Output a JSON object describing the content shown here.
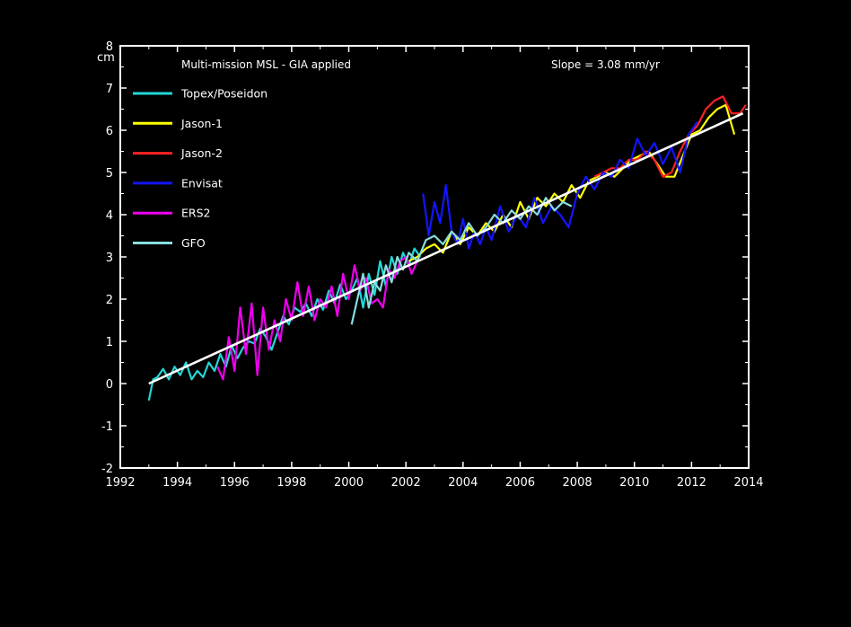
{
  "chart_data": {
    "type": "line",
    "title": "Multi-mission   MSL - GIA applied",
    "annotation": "Slope = 3.08 mm/yr",
    "ylabel": "cm",
    "xlabel": "",
    "xlim": [
      1992,
      2014
    ],
    "ylim": [
      -2,
      8
    ],
    "xticks": [
      "1992",
      "1994",
      "1996",
      "1998",
      "2000",
      "2002",
      "2004",
      "2006",
      "2008",
      "2010",
      "2012",
      "2014"
    ],
    "yticks": [
      "-2",
      "-1",
      "0",
      "1",
      "2",
      "3",
      "4",
      "5",
      "6",
      "7",
      "8"
    ],
    "legend_position": "top-left",
    "grid": false,
    "series": [
      {
        "name": "Topex/Poseidon",
        "color": "#22d8d8",
        "x": [
          1993.0,
          1993.15,
          1993.3,
          1993.5,
          1993.7,
          1993.9,
          1994.1,
          1994.3,
          1994.5,
          1994.7,
          1994.9,
          1995.1,
          1995.3,
          1995.5,
          1995.7,
          1995.9,
          1996.1,
          1996.3,
          1996.5,
          1996.7,
          1996.9,
          1997.1,
          1997.3,
          1997.5,
          1997.7,
          1997.9,
          1998.1,
          1998.3,
          1998.5,
          1998.7,
          1998.9,
          1999.1,
          1999.3,
          1999.5,
          1999.7,
          1999.9,
          2000.1,
          2000.3,
          2000.5,
          2000.7,
          2000.9,
          2001.1,
          2001.3,
          2001.5,
          2001.7,
          2001.9,
          2002.1,
          2002.3,
          2002.5
        ],
        "values": [
          -0.4,
          0.1,
          0.15,
          0.35,
          0.1,
          0.4,
          0.2,
          0.5,
          0.1,
          0.3,
          0.15,
          0.5,
          0.3,
          0.7,
          0.4,
          0.9,
          0.6,
          0.85,
          1.0,
          0.95,
          1.3,
          1.1,
          0.8,
          1.2,
          1.6,
          1.4,
          1.8,
          1.7,
          1.9,
          1.6,
          2.0,
          1.75,
          2.2,
          1.9,
          2.35,
          2.0,
          2.2,
          2.5,
          1.8,
          2.6,
          2.1,
          2.9,
          2.3,
          3.0,
          2.6,
          3.1,
          2.8,
          3.2,
          3.0
        ]
      },
      {
        "name": "Jason-1",
        "color": "#ffff00",
        "x": [
          2002.1,
          2002.4,
          2002.7,
          2003.0,
          2003.3,
          2003.6,
          2003.9,
          2004.2,
          2004.5,
          2004.8,
          2005.1,
          2005.4,
          2005.7,
          2006.0,
          2006.3,
          2006.6,
          2006.9,
          2007.2,
          2007.5,
          2007.8,
          2008.1,
          2008.4,
          2008.7,
          2009.0,
          2009.3,
          2009.6,
          2009.9,
          2010.2,
          2010.5,
          2010.8,
          2011.1,
          2011.4,
          2011.7,
          2012.0,
          2012.3,
          2012.6,
          2012.9,
          2013.2,
          2013.5
        ],
        "values": [
          2.9,
          3.0,
          3.2,
          3.3,
          3.1,
          3.6,
          3.3,
          3.7,
          3.5,
          3.8,
          3.6,
          4.0,
          3.7,
          4.3,
          3.9,
          4.4,
          4.2,
          4.5,
          4.3,
          4.7,
          4.4,
          4.8,
          4.9,
          5.0,
          4.9,
          5.1,
          5.3,
          5.4,
          5.5,
          5.2,
          4.9,
          4.9,
          5.4,
          5.9,
          6.0,
          6.3,
          6.5,
          6.6,
          5.9
        ]
      },
      {
        "name": "Jason-2",
        "color": "#ff2222",
        "x": [
          2008.6,
          2008.9,
          2009.2,
          2009.5,
          2009.8,
          2010.1,
          2010.4,
          2010.7,
          2011.0,
          2011.3,
          2011.6,
          2011.9,
          2012.2,
          2012.5,
          2012.8,
          2013.1,
          2013.4,
          2013.7,
          2013.9
        ],
        "values": [
          4.9,
          5.0,
          5.1,
          5.1,
          5.3,
          5.3,
          5.5,
          5.3,
          4.9,
          5.0,
          5.5,
          5.9,
          6.1,
          6.5,
          6.7,
          6.8,
          6.4,
          6.4,
          6.6
        ]
      },
      {
        "name": "Envisat",
        "color": "#1414ff",
        "x": [
          2002.6,
          2002.8,
          2003.0,
          2003.2,
          2003.4,
          2003.6,
          2003.8,
          2004.0,
          2004.2,
          2004.4,
          2004.6,
          2004.8,
          2005.0,
          2005.3,
          2005.6,
          2005.9,
          2006.2,
          2006.5,
          2006.8,
          2007.1,
          2007.4,
          2007.7,
          2008.0,
          2008.3,
          2008.6,
          2008.9,
          2009.2,
          2009.5,
          2009.8,
          2010.1,
          2010.4,
          2010.7,
          2011.0,
          2011.3,
          2011.6,
          2011.9,
          2012.2
        ],
        "values": [
          4.5,
          3.5,
          4.3,
          3.8,
          4.7,
          3.6,
          3.3,
          3.9,
          3.2,
          3.6,
          3.3,
          3.7,
          3.4,
          4.2,
          3.6,
          4.0,
          3.7,
          4.4,
          3.8,
          4.2,
          4.0,
          3.7,
          4.5,
          4.9,
          4.6,
          5.0,
          4.9,
          5.3,
          5.1,
          5.8,
          5.4,
          5.7,
          5.2,
          5.6,
          5.0,
          5.9,
          6.2
        ]
      },
      {
        "name": "ERS2",
        "color": "#ee00ee",
        "x": [
          1995.4,
          1995.6,
          1995.8,
          1996.0,
          1996.2,
          1996.4,
          1996.6,
          1996.8,
          1997.0,
          1997.2,
          1997.4,
          1997.6,
          1997.8,
          1998.0,
          1998.2,
          1998.4,
          1998.6,
          1998.8,
          1999.0,
          1999.2,
          1999.4,
          1999.6,
          1999.8,
          2000.0,
          2000.2,
          2000.4,
          2000.6,
          2000.8,
          2001.0,
          2001.2,
          2001.4,
          2001.6,
          2001.8,
          2002.0,
          2002.2,
          2002.4
        ],
        "values": [
          0.4,
          0.1,
          1.1,
          0.3,
          1.8,
          0.7,
          1.9,
          0.2,
          1.8,
          0.8,
          1.5,
          1.0,
          2.0,
          1.5,
          2.4,
          1.6,
          2.3,
          1.5,
          2.0,
          1.8,
          2.3,
          1.6,
          2.6,
          2.0,
          2.8,
          2.2,
          2.5,
          1.9,
          2.0,
          1.8,
          2.7,
          2.5,
          2.9,
          3.0,
          2.6,
          2.9
        ]
      },
      {
        "name": "GFO",
        "color": "#88dddd",
        "x": [
          2000.1,
          2000.3,
          2000.5,
          2000.7,
          2000.9,
          2001.1,
          2001.3,
          2001.5,
          2001.7,
          2001.9,
          2002.1,
          2002.4,
          2002.7,
          2003.0,
          2003.3,
          2003.6,
          2003.9,
          2004.2,
          2004.5,
          2004.8,
          2005.1,
          2005.4,
          2005.7,
          2006.0,
          2006.3,
          2006.6,
          2006.9,
          2007.2,
          2007.5,
          2007.8
        ],
        "values": [
          1.4,
          2.0,
          2.6,
          1.8,
          2.4,
          2.2,
          2.8,
          2.4,
          3.0,
          2.7,
          3.1,
          2.9,
          3.4,
          3.5,
          3.3,
          3.6,
          3.4,
          3.8,
          3.5,
          3.7,
          4.0,
          3.8,
          4.1,
          3.9,
          4.2,
          4.0,
          4.4,
          4.1,
          4.3,
          4.2
        ]
      },
      {
        "name": "",
        "color": "#ffffff",
        "x": [
          1993.0,
          2013.8
        ],
        "values": [
          0.0,
          6.4
        ]
      }
    ]
  }
}
